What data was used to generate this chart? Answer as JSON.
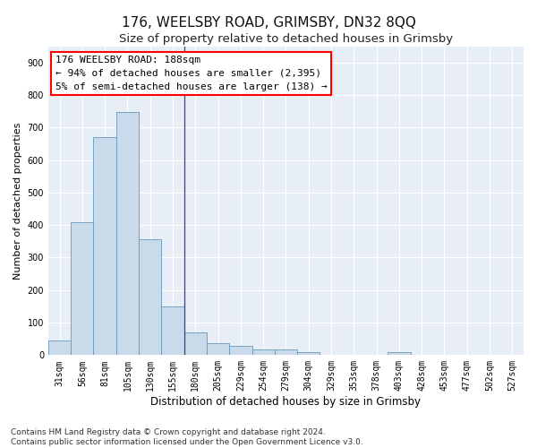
{
  "title": "176, WEELSBY ROAD, GRIMSBY, DN32 8QQ",
  "subtitle": "Size of property relative to detached houses in Grimsby",
  "xlabel": "Distribution of detached houses by size in Grimsby",
  "ylabel": "Number of detached properties",
  "bar_color": "#c9daea",
  "bar_edge_color": "#6699bb",
  "background_color": "#e8eef6",
  "grid_color": "#ffffff",
  "tick_labels": [
    "31sqm",
    "56sqm",
    "81sqm",
    "105sqm",
    "130sqm",
    "155sqm",
    "180sqm",
    "205sqm",
    "229sqm",
    "254sqm",
    "279sqm",
    "304sqm",
    "329sqm",
    "353sqm",
    "378sqm",
    "403sqm",
    "428sqm",
    "453sqm",
    "477sqm",
    "502sqm",
    "527sqm"
  ],
  "bar_heights": [
    46,
    410,
    670,
    748,
    357,
    150,
    70,
    36,
    28,
    18,
    18,
    10,
    0,
    0,
    0,
    10,
    0,
    0,
    0,
    0,
    0
  ],
  "ylim": [
    0,
    950
  ],
  "yticks": [
    0,
    100,
    200,
    300,
    400,
    500,
    600,
    700,
    800,
    900
  ],
  "vline_x_index": 6,
  "annotation_line1": "176 WEELSBY ROAD: 188sqm",
  "annotation_line2": "← 94% of detached houses are smaller (2,395)",
  "annotation_line3": "5% of semi-detached houses are larger (138) →",
  "footnote": "Contains HM Land Registry data © Crown copyright and database right 2024.\nContains public sector information licensed under the Open Government Licence v3.0.",
  "title_fontsize": 11,
  "subtitle_fontsize": 9.5,
  "ylabel_fontsize": 8,
  "xlabel_fontsize": 8.5,
  "tick_fontsize": 7,
  "annotation_fontsize": 8,
  "footnote_fontsize": 6.5
}
